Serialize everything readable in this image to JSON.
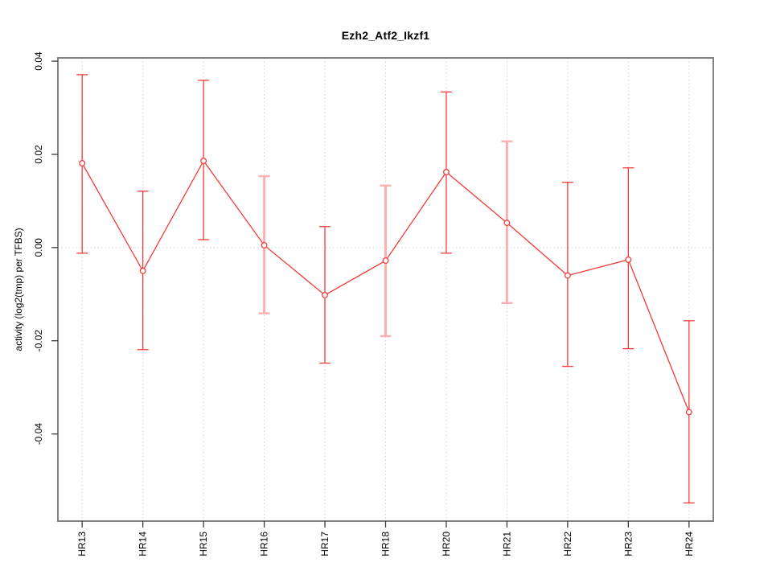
{
  "chart_data": {
    "type": "line",
    "subtype": "error-bar-series",
    "title": "Ezh2_Atf2_Ikzf1",
    "xlabel": "",
    "ylabel": "activity (log2(tmp) per TFBS)",
    "categories": [
      "HR13",
      "HR14",
      "HR15",
      "HR16",
      "HR17",
      "HR18",
      "HR20",
      "HR21",
      "HR22",
      "HR23",
      "HR24"
    ],
    "series": [
      {
        "name": "activity",
        "values": [
          0.0181,
          -0.005,
          0.0186,
          0.0005,
          -0.0102,
          -0.0028,
          0.0162,
          0.0053,
          -0.006,
          -0.0026,
          -0.0353
        ],
        "upper": [
          0.0371,
          0.0121,
          0.0359,
          0.0153,
          0.0045,
          0.0133,
          0.0334,
          0.0228,
          0.014,
          0.0171,
          -0.0157
        ],
        "lower": [
          -0.0012,
          -0.0219,
          0.0017,
          -0.0141,
          -0.0248,
          -0.019,
          -0.0012,
          -0.0119,
          -0.0255,
          -0.0217,
          -0.0548
        ],
        "bar_styles": [
          "normal",
          "normal",
          "normal",
          "light",
          "normal",
          "light",
          "normal",
          "light",
          "normal",
          "normal",
          "normal"
        ]
      }
    ],
    "marker": "open-circle",
    "yticks": [
      0.04,
      0.02,
      0.0,
      -0.02,
      -0.04
    ],
    "ytick_labels": [
      "0.04",
      "0.02",
      "0.00",
      "-0.02",
      "-0.04"
    ],
    "ylim": [
      -0.0587,
      0.0407
    ],
    "xlim": [
      0.6,
      11.4
    ],
    "grid": {
      "vertical_at_categories": true,
      "horizontal_zero_line": true,
      "style": "dotted"
    },
    "legend": "none",
    "colors": {
      "series": "#f43b3b",
      "light_bar": "#ffb0b0",
      "marker_fill": "#ffffff",
      "box": "#838383",
      "tick": "#3a3a3a",
      "grid": "#d4d4d4",
      "text": "#000000",
      "background": "#ffffff"
    }
  }
}
